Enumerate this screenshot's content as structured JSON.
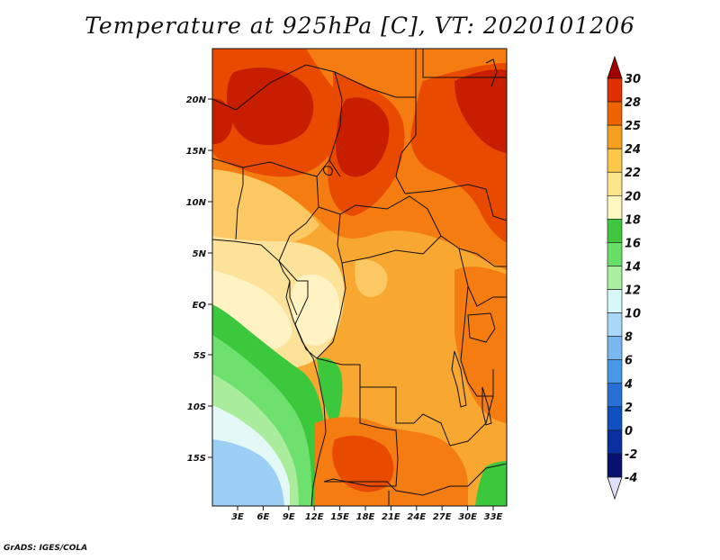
{
  "title": "Temperature at 925hPa [C], VT: 2020101206",
  "credit": "GrADS: IGES/COLA",
  "axes": {
    "lat_labels": [
      "20N",
      "15N",
      "10N",
      "5N",
      "EQ",
      "5S",
      "10S",
      "15S"
    ],
    "lon_labels": [
      "3E",
      "6E",
      "9E",
      "12E",
      "15E",
      "18E",
      "21E",
      "24E",
      "27E",
      "30E",
      "33E"
    ]
  },
  "colorbar": {
    "labels": [
      "30",
      "28",
      "25",
      "24",
      "22",
      "20",
      "18",
      "16",
      "14",
      "12",
      "10",
      "8",
      "6",
      "4",
      "2",
      "0",
      "-2",
      "-4"
    ],
    "colors": [
      "#a50000",
      "#e03000",
      "#f06400",
      "#f79f1f",
      "#fbc84a",
      "#fde68a",
      "#fff6c0",
      "#3fc83f",
      "#68e068",
      "#a8f0a0",
      "#d8f8f8",
      "#a8d8f8",
      "#78b8f0",
      "#4898e8",
      "#2870d8",
      "#1050c0",
      "#0830a0",
      "#081070",
      "#e0e0f8"
    ]
  },
  "palette": {
    "hot": "#c81e00",
    "orange_red": "#e84a00",
    "orange": "#f47c10",
    "amber": "#f8a830",
    "light_orange": "#fbc864",
    "pale_yellow": "#fde39a",
    "cream": "#fff3c4",
    "green_dark": "#3cc83c",
    "green": "#6ee06e",
    "green_pale": "#a8ec9c",
    "ice": "#e4f8f8",
    "sky": "#9ccff5"
  }
}
